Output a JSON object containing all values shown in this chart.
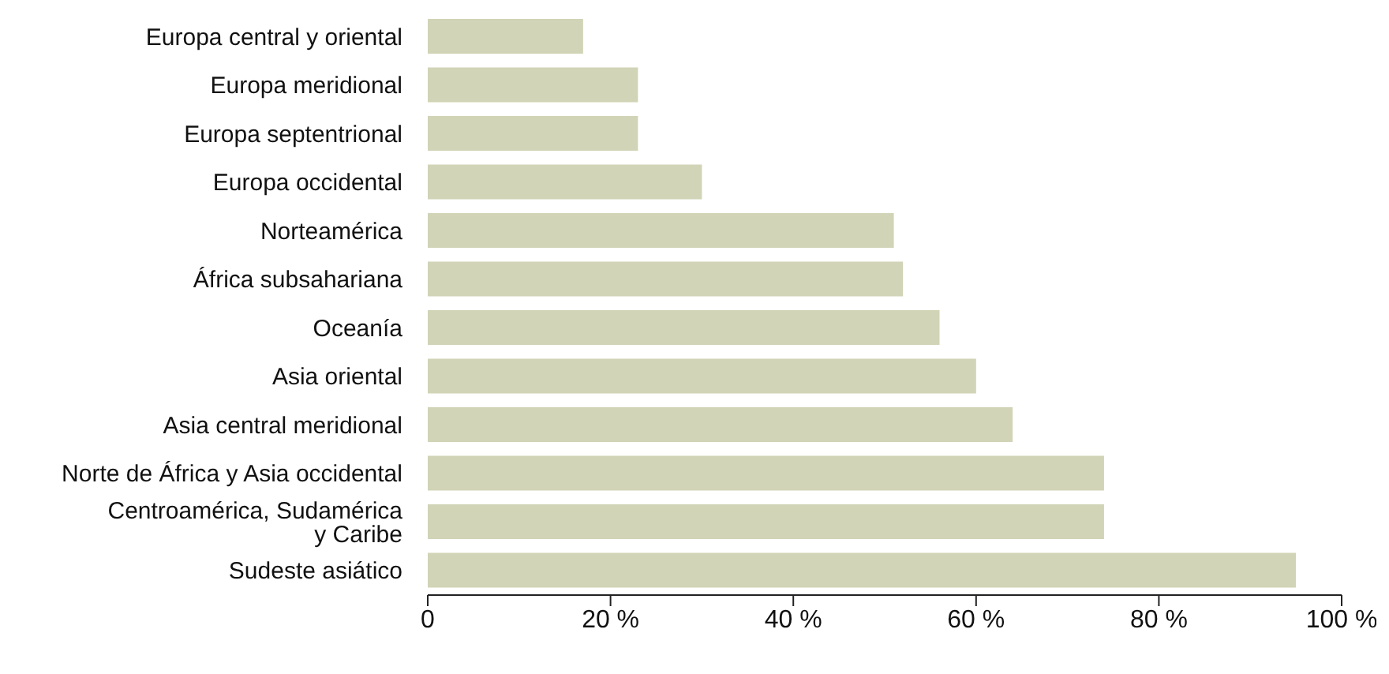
{
  "chart_data": {
    "type": "bar",
    "orientation": "horizontal",
    "categories": [
      "Europa central y oriental",
      "Europa meridional",
      "Europa septentrional",
      "Europa occidental",
      "Norteamérica",
      "África subsahariana",
      "Oceanía",
      "Asia oriental",
      "Asia central meridional",
      "Norte de África y Asia occidental",
      "Centroamérica, Sudamérica y Caribe",
      "Sudeste asiático"
    ],
    "values": [
      17,
      23,
      23,
      30,
      51,
      52,
      56,
      60,
      64,
      74,
      74,
      95
    ],
    "color": "#d1d4b6",
    "xlim": [
      0,
      100
    ],
    "xticks": [
      0,
      {
        "value": 20,
        "label": "20 %"
      },
      {
        "value": 40,
        "label": "40 %"
      },
      {
        "value": 60,
        "label": "60 %"
      },
      {
        "value": 80,
        "label": "80 %"
      },
      {
        "value": 100,
        "label": "100 %"
      }
    ],
    "grid": false,
    "legend": false
  }
}
